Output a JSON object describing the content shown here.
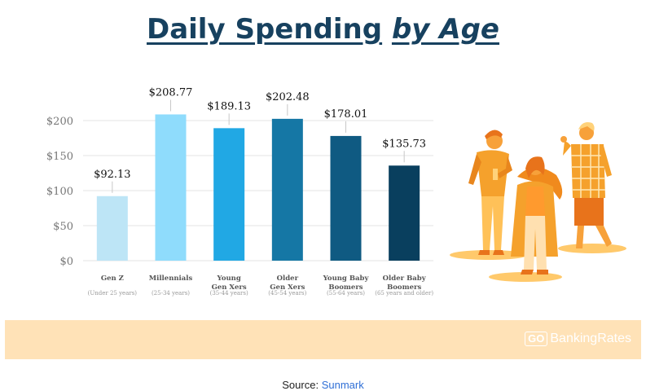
{
  "title": {
    "main": "Daily Spending",
    "emph": "by Age"
  },
  "chart_data": {
    "type": "bar",
    "categories": [
      {
        "line1": "Gen Z",
        "line2": "",
        "age": "(Under 25 years)"
      },
      {
        "line1": "Millennials",
        "line2": "",
        "age": "(25-34 years)"
      },
      {
        "line1": "Young",
        "line2": "Gen Xers",
        "age": "(35-44 years)"
      },
      {
        "line1": "Older",
        "line2": "Gen Xers",
        "age": "(45-54 years)"
      },
      {
        "line1": "Young Baby",
        "line2": "Boomers",
        "age": "(55-64 years)"
      },
      {
        "line1": "Older Baby",
        "line2": "Boomers",
        "age": "(65 years and older)"
      }
    ],
    "values": [
      92.13,
      208.77,
      189.13,
      202.48,
      178.01,
      135.73
    ],
    "value_labels": [
      "$92.13",
      "$208.77",
      "$189.13",
      "$202.48",
      "$178.01",
      "$135.73"
    ],
    "colors": [
      "#bde5f6",
      "#8fdcfc",
      "#21a8e4",
      "#1577a5",
      "#0f5a82",
      "#093f5e"
    ],
    "yticks": [
      0,
      50,
      100,
      150,
      200
    ],
    "ytick_labels": [
      "$0",
      "$50",
      "$100",
      "$150",
      "$200"
    ],
    "ylim": [
      0,
      200
    ],
    "grid": true
  },
  "branding": {
    "logo_go": "GO",
    "logo_text": "BankingRates"
  },
  "source": {
    "label": "Source:",
    "name": "Sunmark"
  }
}
